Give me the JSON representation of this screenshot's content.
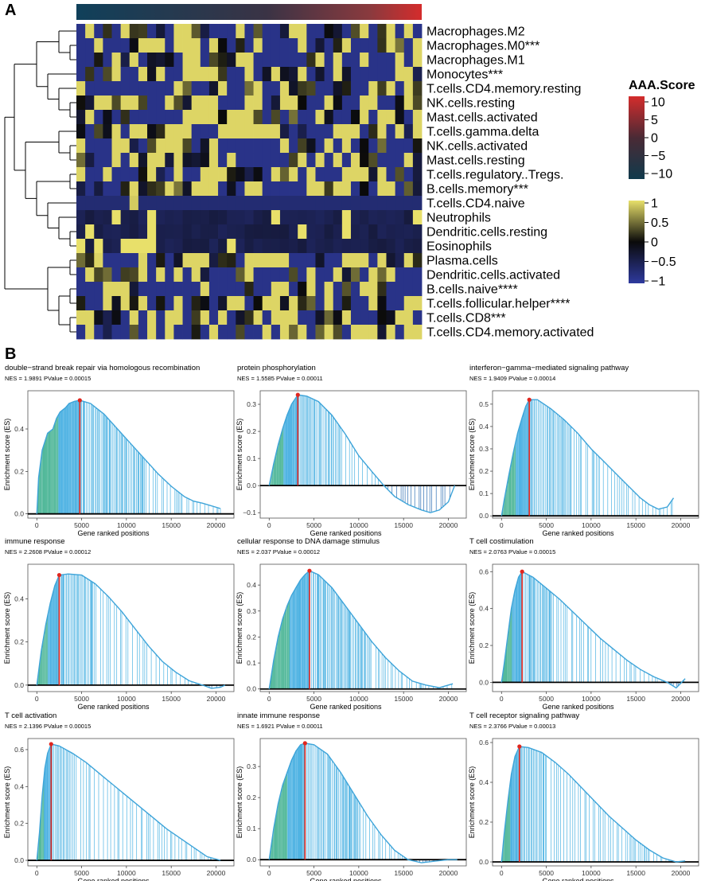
{
  "panels": {
    "a": "A",
    "b": "B"
  },
  "heatmap": {
    "rows": [
      "Macrophages.M2",
      "Macrophages.M0***",
      "Macrophages.M1",
      "Monocytes***",
      "T.cells.CD4.memory.resting",
      "NK.cells.resting",
      "Mast.cells.activated",
      "T.cells.gamma.delta",
      "NK.cells.activated",
      "Mast.cells.resting",
      "T.cells.regulatory..Tregs.",
      "B.cells.memory***",
      "T.cells.CD4.naive",
      "Neutrophils",
      "Dendritic.cells.resting",
      "Eosinophils",
      "Plasma.cells",
      "Dendritic.cells.activated",
      "B.cells.naive****",
      "T.cells.follicular.helper****",
      "T.cells.CD8***",
      "T.cells.CD4.memory.activated"
    ],
    "n_cols": 39,
    "legend_title": "AAA.Score",
    "score_ticks": [
      "10",
      "5",
      "0",
      "−5",
      "−10"
    ],
    "z_ticks": [
      "1",
      "0.5",
      "0",
      "−0.5",
      "−1"
    ],
    "colors": {
      "score_low": "#103a4c",
      "score_high": "#d42c2c",
      "z_low": "#2e3a9e",
      "z_mid": "#0a0a0a",
      "z_high": "#e8e06a"
    }
  },
  "gsea": {
    "y_axis_label": "Enrichment score (ES)",
    "x_axis_label": "Gene ranked positions",
    "colors": {
      "curve": "#3ea4d9",
      "peak": "#e0261f"
    }
  },
  "chart_data": [
    {
      "type": "heatmap",
      "title": "",
      "rows": 22,
      "cols": 39,
      "legend": "AAA.Score",
      "z_range": [
        -1,
        1
      ],
      "score_range": [
        -10,
        10
      ]
    },
    {
      "type": "line",
      "title": "double−strand break repair via homologous recombination",
      "subtitle": "NES = 1.9891   PValue = 0.00015",
      "nes": "1.9891",
      "pvalue": "0.00015",
      "xlabel": "Gene ranked positions",
      "ylabel": "Enrichment score (ES)",
      "xlim": [
        -1000,
        22000
      ],
      "ylim": [
        -0.02,
        0.58
      ],
      "xticks": [
        0,
        5000,
        10000,
        15000,
        20000
      ],
      "yticks": [
        0.0,
        0.2,
        0.4
      ],
      "ytick_labels": [
        "0.0",
        "0.2",
        "0.4"
      ],
      "x": [
        0,
        200,
        600,
        1200,
        1800,
        2200,
        2600,
        3200,
        3600,
        4200,
        4800,
        6000,
        7500,
        9000,
        10500,
        12000,
        13500,
        15000,
        16500,
        17500,
        18500,
        20500
      ],
      "y": [
        0,
        0.17,
        0.3,
        0.38,
        0.4,
        0.45,
        0.48,
        0.5,
        0.52,
        0.53,
        0.535,
        0.52,
        0.47,
        0.4,
        0.33,
        0.26,
        0.19,
        0.13,
        0.08,
        0.06,
        0.05,
        0.025
      ],
      "peak_x": 4800
    },
    {
      "type": "line",
      "title": "protein phosphorylation",
      "subtitle": "NES = 1.5585   PValue = 0.00011",
      "nes": "1.5585",
      "pvalue": "0.00011",
      "xlabel": "Gene ranked positions",
      "ylabel": "Enrichment score (ES)",
      "xlim": [
        -1000,
        22000
      ],
      "ylim": [
        -0.12,
        0.35
      ],
      "xticks": [
        0,
        5000,
        10000,
        15000,
        20000
      ],
      "yticks": [
        -0.1,
        0.0,
        0.1,
        0.2,
        0.3
      ],
      "ytick_labels": [
        "−0.1",
        "0.0",
        "0.1",
        "0.2",
        "0.3"
      ],
      "x": [
        0,
        500,
        1000,
        1500,
        2000,
        2500,
        3200,
        4200,
        5500,
        7000,
        8500,
        10000,
        11500,
        12800,
        14000,
        15500,
        17000,
        18000,
        19000,
        20000,
        20700
      ],
      "y": [
        0,
        0.08,
        0.15,
        0.21,
        0.26,
        0.3,
        0.335,
        0.33,
        0.31,
        0.26,
        0.19,
        0.11,
        0.05,
        0.0,
        -0.04,
        -0.07,
        -0.09,
        -0.1,
        -0.09,
        -0.06,
        0.0
      ],
      "peak_x": 3200
    },
    {
      "type": "line",
      "title": "interferon−gamma−mediated signaling pathway",
      "subtitle": "NES = 1.9409   PValue = 0.00014",
      "nes": "1.9409",
      "pvalue": "0.00014",
      "xlabel": "Gene ranked positions",
      "ylabel": "Enrichment score (ES)",
      "xlim": [
        -1000,
        22000
      ],
      "ylim": [
        -0.01,
        0.56
      ],
      "xticks": [
        0,
        5000,
        10000,
        15000,
        20000
      ],
      "yticks": [
        0.0,
        0.1,
        0.2,
        0.3,
        0.4,
        0.5
      ],
      "ytick_labels": [
        "0.0",
        "0.1",
        "0.2",
        "0.3",
        "0.4",
        "0.5"
      ],
      "x": [
        0,
        300,
        800,
        1300,
        1800,
        2300,
        2700,
        3100,
        4000,
        5500,
        7000,
        8500,
        10000,
        11500,
        13000,
        14500,
        15500,
        16500,
        17500,
        18500,
        19200
      ],
      "y": [
        0,
        0.07,
        0.18,
        0.28,
        0.37,
        0.44,
        0.49,
        0.52,
        0.52,
        0.48,
        0.43,
        0.37,
        0.3,
        0.24,
        0.18,
        0.12,
        0.08,
        0.05,
        0.03,
        0.04,
        0.08
      ],
      "peak_x": 3100
    },
    {
      "type": "line",
      "title": "immune response",
      "subtitle": "NES = 2.2608   PValue = 0.00012",
      "nes": "2.2608",
      "pvalue": "0.00012",
      "xlabel": "Gene ranked positions",
      "ylabel": "Enrichment score (ES)",
      "xlim": [
        -1000,
        22000
      ],
      "ylim": [
        -0.03,
        0.56
      ],
      "xticks": [
        0,
        5000,
        10000,
        15000,
        20000
      ],
      "yticks": [
        0.0,
        0.2,
        0.4
      ],
      "ytick_labels": [
        "0.0",
        "0.2",
        "0.4"
      ],
      "x": [
        0,
        500,
        1000,
        1500,
        2000,
        2500,
        3500,
        5000,
        6500,
        8000,
        9500,
        11000,
        12500,
        14000,
        15500,
        17000,
        18500,
        19500,
        20500,
        21000
      ],
      "y": [
        0,
        0.16,
        0.28,
        0.38,
        0.46,
        0.51,
        0.515,
        0.51,
        0.47,
        0.41,
        0.34,
        0.26,
        0.18,
        0.11,
        0.06,
        0.02,
        0.0,
        -0.015,
        -0.01,
        0.0
      ],
      "peak_x": 2500
    },
    {
      "type": "line",
      "title": "cellular response to DNA damage stimulus",
      "subtitle": "NES = 2.037   PValue = 0.00012",
      "nes": "2.037",
      "pvalue": "0.00012",
      "xlabel": "Gene ranked positions",
      "ylabel": "Enrichment score (ES)",
      "xlim": [
        -1000,
        22000
      ],
      "ylim": [
        -0.01,
        0.48
      ],
      "xticks": [
        0,
        5000,
        10000,
        15000,
        20000
      ],
      "yticks": [
        0.0,
        0.1,
        0.2,
        0.3,
        0.4
      ],
      "ytick_labels": [
        "0.0",
        "0.1",
        "0.2",
        "0.3",
        "0.4"
      ],
      "x": [
        0,
        500,
        1000,
        1500,
        2000,
        2500,
        3000,
        3500,
        4000,
        4500,
        5500,
        7000,
        8500,
        10000,
        11500,
        13000,
        14500,
        16000,
        17500,
        19000,
        20500
      ],
      "y": [
        0,
        0.11,
        0.2,
        0.27,
        0.32,
        0.36,
        0.39,
        0.42,
        0.44,
        0.455,
        0.44,
        0.39,
        0.32,
        0.25,
        0.18,
        0.12,
        0.07,
        0.03,
        0.015,
        0.005,
        0.02
      ],
      "peak_x": 4500
    },
    {
      "type": "line",
      "title": "T cell costimulation",
      "subtitle": "NES = 2.0763   PValue = 0.00015",
      "nes": "2.0763",
      "pvalue": "0.00015",
      "xlabel": "Gene ranked positions",
      "ylabel": "Enrichment score (ES)",
      "xlim": [
        -1000,
        22000
      ],
      "ylim": [
        -0.05,
        0.64
      ],
      "xticks": [
        0,
        5000,
        10000,
        15000,
        20000
      ],
      "yticks": [
        0.0,
        0.2,
        0.4,
        0.6
      ],
      "ytick_labels": [
        "0.0",
        "0.2",
        "0.4",
        "0.6"
      ],
      "x": [
        0,
        300,
        700,
        1100,
        1500,
        1900,
        2300,
        3500,
        5000,
        6500,
        8000,
        9500,
        11000,
        12500,
        14000,
        15500,
        17000,
        18500,
        19500,
        20500
      ],
      "y": [
        0,
        0.1,
        0.25,
        0.4,
        0.5,
        0.57,
        0.6,
        0.57,
        0.51,
        0.45,
        0.38,
        0.31,
        0.24,
        0.18,
        0.12,
        0.07,
        0.03,
        0.0,
        -0.03,
        0.02
      ],
      "peak_x": 2300
    },
    {
      "type": "line",
      "title": "T cell activation",
      "subtitle": "NES = 2.1396   PValue = 0.00015",
      "nes": "2.1396",
      "pvalue": "0.00015",
      "xlabel": "Gene ranked positions",
      "ylabel": "Enrichment score (ES)",
      "xlim": [
        -1000,
        22000
      ],
      "ylim": [
        -0.03,
        0.66
      ],
      "xticks": [
        0,
        5000,
        10000,
        15000,
        20000
      ],
      "yticks": [
        0.0,
        0.2,
        0.4,
        0.6
      ],
      "ytick_labels": [
        "0.0",
        "0.2",
        "0.4",
        "0.6"
      ],
      "x": [
        0,
        300,
        600,
        900,
        1200,
        1600,
        2500,
        4000,
        5500,
        7000,
        8500,
        10000,
        11500,
        13000,
        14500,
        16000,
        17500,
        19000,
        20500
      ],
      "y": [
        0,
        0.15,
        0.35,
        0.5,
        0.58,
        0.63,
        0.62,
        0.58,
        0.53,
        0.47,
        0.41,
        0.35,
        0.29,
        0.23,
        0.17,
        0.12,
        0.07,
        0.02,
        0.0
      ],
      "peak_x": 1600
    },
    {
      "type": "line",
      "title": "innate immune response",
      "subtitle": "NES = 1.6921   PValue = 0.00011",
      "nes": "1.6921",
      "pvalue": "0.00011",
      "xlabel": "Gene ranked positions",
      "ylabel": "Enrichment score (ES)",
      "xlim": [
        -1000,
        22000
      ],
      "ylim": [
        -0.02,
        0.39
      ],
      "xticks": [
        0,
        5000,
        10000,
        15000,
        20000
      ],
      "yticks": [
        0.0,
        0.1,
        0.2,
        0.3
      ],
      "ytick_labels": [
        "0.0",
        "0.1",
        "0.2",
        "0.3"
      ],
      "x": [
        0,
        500,
        1000,
        1500,
        2000,
        2500,
        3000,
        3500,
        4000,
        5000,
        6500,
        8000,
        9500,
        11000,
        12500,
        14000,
        15500,
        17000,
        18500,
        20000,
        21000
      ],
      "y": [
        0,
        0.1,
        0.18,
        0.24,
        0.28,
        0.32,
        0.35,
        0.37,
        0.375,
        0.37,
        0.34,
        0.28,
        0.21,
        0.14,
        0.08,
        0.03,
        0.0,
        -0.01,
        -0.005,
        0.0,
        0.0
      ],
      "peak_x": 4000
    },
    {
      "type": "line",
      "title": "T cell receptor signaling pathway",
      "subtitle": "NES = 2.3766   PValue = 0.00013",
      "nes": "2.3766",
      "pvalue": "0.00013",
      "xlabel": "Gene ranked positions",
      "ylabel": "Enrichment score (ES)",
      "xlim": [
        -1000,
        22000
      ],
      "ylim": [
        -0.02,
        0.62
      ],
      "xticks": [
        0,
        5000,
        10000,
        15000,
        20000
      ],
      "yticks": [
        0.0,
        0.2,
        0.4,
        0.6
      ],
      "ytick_labels": [
        "0.0",
        "0.2",
        "0.4",
        "0.6"
      ],
      "x": [
        0,
        300,
        700,
        1100,
        1500,
        2000,
        3000,
        4500,
        6000,
        7500,
        9000,
        10500,
        12000,
        13500,
        15000,
        16500,
        18000,
        19500,
        20500
      ],
      "y": [
        0,
        0.14,
        0.3,
        0.44,
        0.53,
        0.58,
        0.575,
        0.55,
        0.5,
        0.44,
        0.37,
        0.3,
        0.23,
        0.17,
        0.11,
        0.06,
        0.02,
        0.0,
        0.005
      ],
      "peak_x": 2000
    }
  ]
}
